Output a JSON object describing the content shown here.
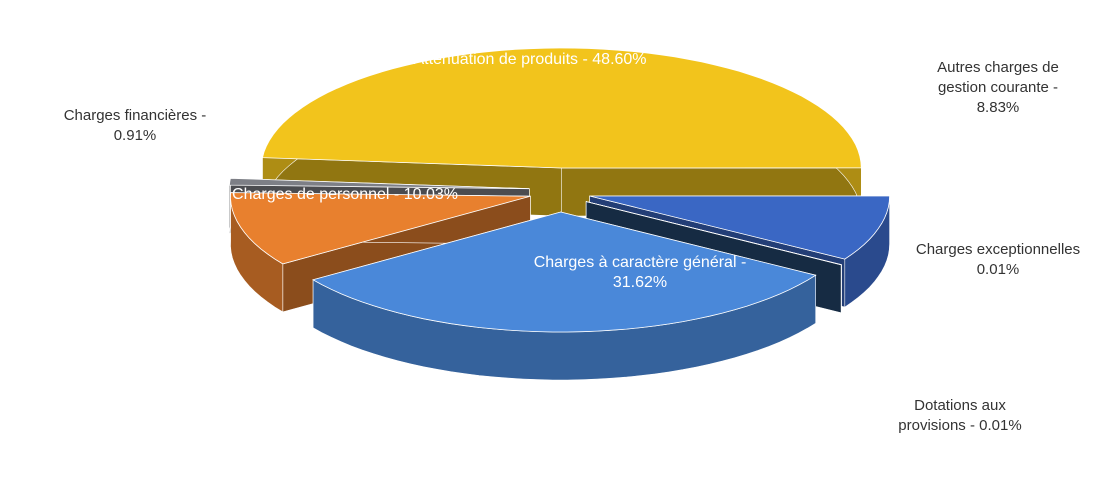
{
  "chart_data": {
    "type": "pie",
    "categories": [
      "Atténuation de produits -",
      "Autres charges de gestion courante -",
      "Charges exceptionnelles",
      "Dotations aux provisions -",
      "Charges à caractère général -",
      "Charges de personnel -",
      "Charges financières -"
    ],
    "values": [
      48.6,
      8.83,
      0.01,
      0.01,
      31.62,
      10.03,
      0.91
    ],
    "value_labels": [
      "48.60%",
      "8.83%",
      "0.01%",
      "0.01%",
      "31.62%",
      "10.03%",
      "0.91%"
    ],
    "colors": [
      "#f2c41c",
      "#3a67c4",
      "#1e3d66",
      "#24486f",
      "#4a88d9",
      "#e8802e",
      "#7d7f86"
    ]
  }
}
